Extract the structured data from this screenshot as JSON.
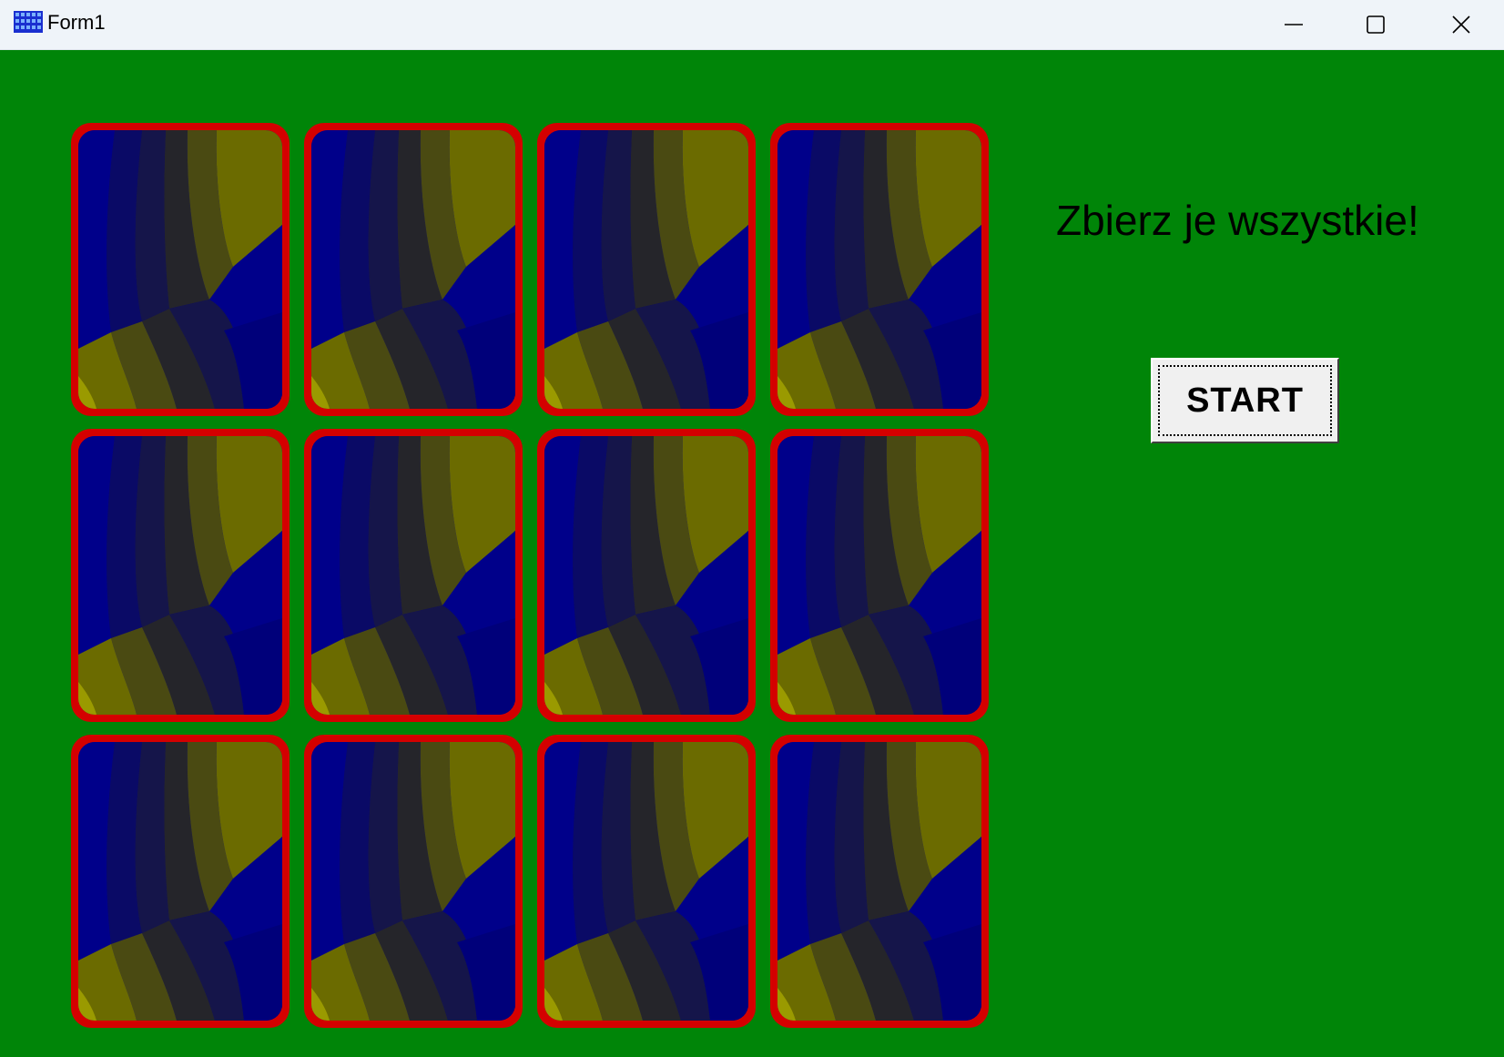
{
  "window": {
    "title": "Form1",
    "icon": "grid-app-icon",
    "controls": [
      "minimize-icon",
      "maximize-icon",
      "close-icon"
    ]
  },
  "game": {
    "slogan": "Zbierz je wszystkie!",
    "start_label": "START",
    "rows": 3,
    "cols": 4,
    "cards": [
      {
        "state": "face-down"
      },
      {
        "state": "face-down"
      },
      {
        "state": "face-down"
      },
      {
        "state": "face-down"
      },
      {
        "state": "face-down"
      },
      {
        "state": "face-down"
      },
      {
        "state": "face-down"
      },
      {
        "state": "face-down"
      },
      {
        "state": "face-down"
      },
      {
        "state": "face-down"
      },
      {
        "state": "face-down"
      },
      {
        "state": "face-down"
      }
    ]
  },
  "colors": {
    "table": "#008508",
    "card_border": "#d40000",
    "card_blue": "#00008a",
    "card_olive": "#6b6b00",
    "titlebar": "#eff4f9"
  }
}
